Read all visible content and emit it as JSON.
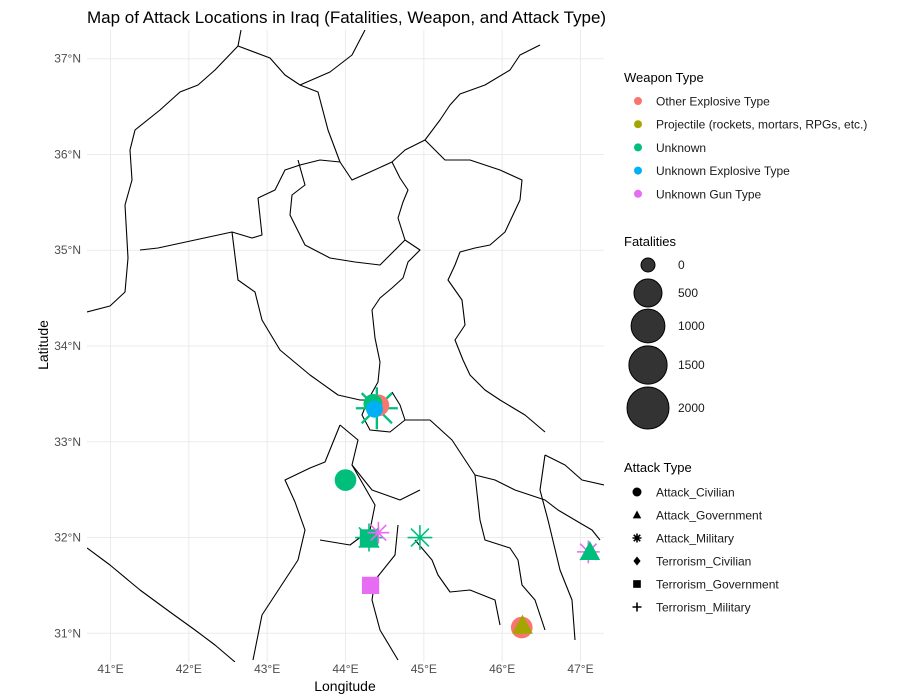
{
  "chart_data": {
    "type": "scatter",
    "title": "Map of Attack Locations in Iraq (Fatalities, Weapon, and Attack Type)",
    "xlabel": "Longitude",
    "ylabel": "Latitude",
    "xlim": [
      40.7,
      47.3
    ],
    "ylim": [
      30.7,
      37.3
    ],
    "x_ticks": [
      {
        "value": 41,
        "label": "41°E"
      },
      {
        "value": 42,
        "label": "42°E"
      },
      {
        "value": 43,
        "label": "43°E"
      },
      {
        "value": 44,
        "label": "44°E"
      },
      {
        "value": 45,
        "label": "45°E"
      },
      {
        "value": 46,
        "label": "46°E"
      },
      {
        "value": 47,
        "label": "47°E"
      }
    ],
    "y_ticks": [
      {
        "value": 31,
        "label": "31°N"
      },
      {
        "value": 32,
        "label": "32°N"
      },
      {
        "value": 33,
        "label": "33°N"
      },
      {
        "value": 34,
        "label": "34°N"
      },
      {
        "value": 35,
        "label": "35°N"
      },
      {
        "value": 36,
        "label": "36°N"
      },
      {
        "value": 37,
        "label": "37°N"
      }
    ],
    "grid": true,
    "legend_position": "right",
    "weapon_legend": {
      "title": "Weapon Type",
      "items": [
        {
          "label": "Other Explosive Type",
          "color": "#F8766D"
        },
        {
          "label": "Projectile (rockets, mortars, RPGs, etc.)",
          "color": "#A3A500"
        },
        {
          "label": "Unknown",
          "color": "#00BF7D"
        },
        {
          "label": "Unknown Explosive Type",
          "color": "#00B0F6"
        },
        {
          "label": "Unknown Gun Type",
          "color": "#E76BF3"
        }
      ]
    },
    "size_legend": {
      "title": "Fatalities",
      "items": [
        {
          "label": "0",
          "value": 0
        },
        {
          "label": "500",
          "value": 500
        },
        {
          "label": "1000",
          "value": 1000
        },
        {
          "label": "1500",
          "value": 1500
        },
        {
          "label": "2000",
          "value": 2000
        }
      ]
    },
    "shape_legend": {
      "title": "Attack Type",
      "items": [
        {
          "label": "Attack_Civilian",
          "shape": "circle"
        },
        {
          "label": "Attack_Government",
          "shape": "triangle"
        },
        {
          "label": "Attack_Military",
          "shape": "asterisk"
        },
        {
          "label": "Terrorism_Civilian",
          "shape": "diamond"
        },
        {
          "label": "Terrorism_Government",
          "shape": "square"
        },
        {
          "label": "Terrorism_Military",
          "shape": "plus"
        }
      ]
    },
    "points": [
      {
        "lon": 44.4,
        "lat": 33.35,
        "weapon": "Unknown",
        "attack": "Attack_Military",
        "fatalities": 2000
      },
      {
        "lon": 44.42,
        "lat": 33.38,
        "weapon": "Other Explosive Type",
        "attack": "Attack_Civilian",
        "fatalities": 150
      },
      {
        "lon": 44.35,
        "lat": 33.4,
        "weapon": "Unknown",
        "attack": "Attack_Civilian",
        "fatalities": 60
      },
      {
        "lon": 44.37,
        "lat": 33.34,
        "weapon": "Unknown Explosive Type",
        "attack": "Attack_Civilian",
        "fatalities": 20
      },
      {
        "lon": 44.0,
        "lat": 32.6,
        "weapon": "Unknown",
        "attack": "Attack_Civilian",
        "fatalities": 150
      },
      {
        "lon": 44.3,
        "lat": 32.0,
        "weapon": "Unknown",
        "attack": "Attack_Military",
        "fatalities": 500
      },
      {
        "lon": 44.3,
        "lat": 31.99,
        "weapon": "Unknown",
        "attack": "Terrorism_Government",
        "fatalities": 150
      },
      {
        "lon": 44.42,
        "lat": 32.05,
        "weapon": "Unknown Gun Type",
        "attack": "Attack_Military",
        "fatalities": 150
      },
      {
        "lon": 44.95,
        "lat": 32.0,
        "weapon": "Unknown",
        "attack": "Attack_Military",
        "fatalities": 300
      },
      {
        "lon": 44.32,
        "lat": 31.5,
        "weapon": "Unknown Gun Type",
        "attack": "Terrorism_Government",
        "fatalities": 100
      },
      {
        "lon": 46.25,
        "lat": 31.06,
        "weapon": "Other Explosive Type",
        "attack": "Attack_Civilian",
        "fatalities": 150
      },
      {
        "lon": 46.26,
        "lat": 31.08,
        "weapon": "Projectile (rockets, mortars, RPGs, etc.)",
        "attack": "Attack_Government",
        "fatalities": 150
      },
      {
        "lon": 47.1,
        "lat": 31.85,
        "weapon": "Unknown Gun Type",
        "attack": "Attack_Military",
        "fatalities": 200
      },
      {
        "lon": 47.12,
        "lat": 31.85,
        "weapon": "Unknown",
        "attack": "Attack_Government",
        "fatalities": 150
      }
    ]
  }
}
